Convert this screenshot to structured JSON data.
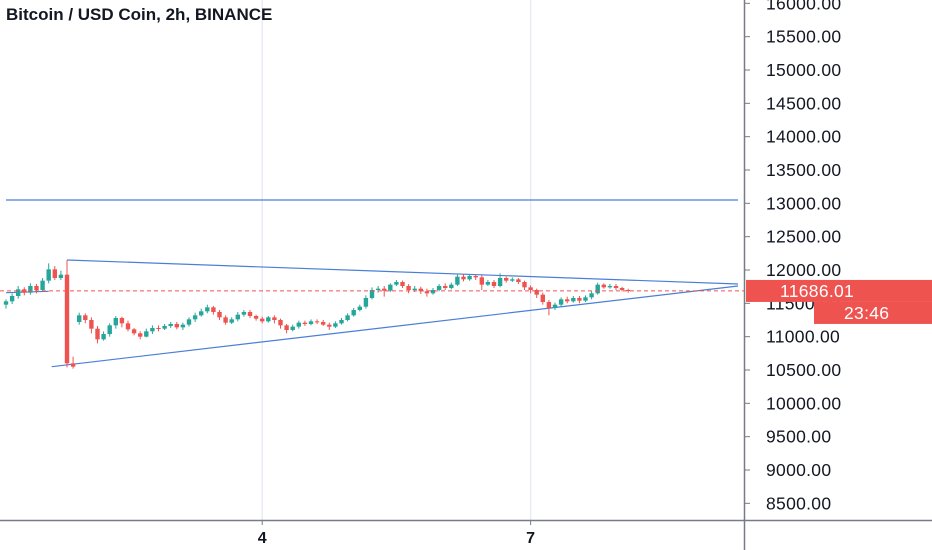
{
  "header": {
    "title": "Bitcoin / USD Coin, 2h, BINANCE"
  },
  "colors": {
    "up": "#26a69a",
    "down": "#ef5350",
    "trendline": "#4a7fd6",
    "grid": "#e8ecf7",
    "axis": "#787b86",
    "price_tag": "#ef5350"
  },
  "chart_data": {
    "type": "candlestick",
    "title": "Bitcoin / USD Coin, 2h, BINANCE",
    "ylim": [
      8400,
      16200
    ],
    "xlim": [
      0,
      120
    ],
    "y_ticks": [
      "16000.00",
      "15500.00",
      "15000.00",
      "14500.00",
      "14000.00",
      "13500.00",
      "13000.00",
      "12500.00",
      "12000.00",
      "11500.00",
      "11000.00",
      "10500.00",
      "10000.00",
      "9500.00",
      "9000.00",
      "8500.00"
    ],
    "x_ticks": [
      {
        "label": "4",
        "x": 42
      },
      {
        "label": "7",
        "x": 86
      }
    ],
    "current_price": "11686.01",
    "countdown": "23:46",
    "candles": [
      [
        11480,
        11530,
        11420,
        11560
      ],
      [
        11530,
        11610,
        11490,
        11650
      ],
      [
        11610,
        11710,
        11570,
        11760
      ],
      [
        11710,
        11660,
        11620,
        11740
      ],
      [
        11660,
        11760,
        11630,
        11800
      ],
      [
        11760,
        11700,
        11650,
        11790
      ],
      [
        11700,
        11840,
        11680,
        11880
      ],
      [
        11840,
        12010,
        11800,
        12100
      ],
      [
        12010,
        11880,
        11850,
        12060
      ],
      [
        11880,
        11930,
        11850,
        11990
      ],
      [
        11930,
        10600,
        10540,
        12150
      ],
      [
        10600,
        10550,
        10520,
        10700
      ],
      [
        11220,
        11320,
        11180,
        11360
      ],
      [
        11320,
        11250,
        11200,
        11350
      ],
      [
        11250,
        11120,
        11050,
        11290
      ],
      [
        11120,
        10960,
        10900,
        11160
      ],
      [
        10960,
        11040,
        10940,
        11080
      ],
      [
        11040,
        11170,
        11000,
        11200
      ],
      [
        11170,
        11280,
        11120,
        11310
      ],
      [
        11280,
        11200,
        11140,
        11300
      ],
      [
        11200,
        11110,
        11080,
        11240
      ],
      [
        11110,
        11050,
        11020,
        11130
      ],
      [
        11050,
        11000,
        10960,
        11080
      ],
      [
        11000,
        11080,
        10990,
        11120
      ],
      [
        11080,
        11130,
        11040,
        11170
      ],
      [
        11130,
        11120,
        11080,
        11170
      ],
      [
        11120,
        11160,
        11100,
        11190
      ],
      [
        11160,
        11190,
        11130,
        11220
      ],
      [
        11190,
        11140,
        11110,
        11220
      ],
      [
        11140,
        11180,
        11100,
        11210
      ],
      [
        11180,
        11260,
        11150,
        11290
      ],
      [
        11260,
        11320,
        11220,
        11360
      ],
      [
        11320,
        11380,
        11300,
        11420
      ],
      [
        11380,
        11440,
        11350,
        11480
      ],
      [
        11440,
        11370,
        11330,
        11460
      ],
      [
        11370,
        11290,
        11250,
        11400
      ],
      [
        11290,
        11210,
        11180,
        11320
      ],
      [
        11210,
        11260,
        11190,
        11290
      ],
      [
        11260,
        11330,
        11230,
        11370
      ],
      [
        11330,
        11370,
        11300,
        11400
      ],
      [
        11370,
        11310,
        11280,
        11400
      ],
      [
        11310,
        11270,
        11240,
        11330
      ],
      [
        11270,
        11230,
        11200,
        11300
      ],
      [
        11230,
        11290,
        11210,
        11310
      ],
      [
        11290,
        11250,
        11200,
        11320
      ],
      [
        11250,
        11170,
        11120,
        11270
      ],
      [
        11170,
        11100,
        11050,
        11190
      ],
      [
        11100,
        11150,
        11080,
        11180
      ],
      [
        11150,
        11210,
        11120,
        11240
      ],
      [
        11210,
        11190,
        11160,
        11240
      ],
      [
        11190,
        11230,
        11170,
        11260
      ],
      [
        11230,
        11220,
        11190,
        11260
      ],
      [
        11220,
        11180,
        11160,
        11250
      ],
      [
        11180,
        11150,
        11100,
        11210
      ],
      [
        11150,
        11200,
        11130,
        11230
      ],
      [
        11200,
        11250,
        11180,
        11280
      ],
      [
        11250,
        11320,
        11230,
        11350
      ],
      [
        11320,
        11400,
        11300,
        11430
      ],
      [
        11400,
        11450,
        11380,
        11480
      ],
      [
        11450,
        11580,
        11420,
        11620
      ],
      [
        11580,
        11700,
        11560,
        11740
      ],
      [
        11700,
        11720,
        11660,
        11760
      ],
      [
        11720,
        11690,
        11600,
        11760
      ],
      [
        11690,
        11780,
        11670,
        11800
      ],
      [
        11780,
        11820,
        11760,
        11850
      ],
      [
        11820,
        11760,
        11730,
        11840
      ],
      [
        11760,
        11700,
        11650,
        11790
      ],
      [
        11700,
        11720,
        11670,
        11760
      ],
      [
        11720,
        11680,
        11640,
        11750
      ],
      [
        11680,
        11650,
        11600,
        11720
      ],
      [
        11650,
        11700,
        11630,
        11730
      ],
      [
        11700,
        11760,
        11680,
        11790
      ],
      [
        11760,
        11730,
        11700,
        11800
      ],
      [
        11730,
        11780,
        11710,
        11810
      ],
      [
        11780,
        11900,
        11760,
        11930
      ],
      [
        11900,
        11860,
        11830,
        11940
      ],
      [
        11860,
        11910,
        11840,
        11940
      ],
      [
        11910,
        11890,
        11850,
        11930
      ],
      [
        11890,
        11780,
        11700,
        11920
      ],
      [
        11780,
        11820,
        11760,
        11850
      ],
      [
        11820,
        11760,
        11730,
        11850
      ],
      [
        11760,
        11880,
        11740,
        11950
      ],
      [
        11880,
        11840,
        11810,
        11900
      ],
      [
        11840,
        11860,
        11820,
        11890
      ],
      [
        11860,
        11820,
        11790,
        11880
      ],
      [
        11820,
        11740,
        11700,
        11840
      ],
      [
        11740,
        11700,
        11650,
        11770
      ],
      [
        11700,
        11630,
        11580,
        11720
      ],
      [
        11630,
        11520,
        11480,
        11660
      ],
      [
        11520,
        11430,
        11320,
        11550
      ],
      [
        11430,
        11480,
        11400,
        11510
      ],
      [
        11480,
        11560,
        11450,
        11590
      ],
      [
        11560,
        11530,
        11500,
        11600
      ],
      [
        11530,
        11580,
        11510,
        11610
      ],
      [
        11580,
        11540,
        11500,
        11610
      ],
      [
        11540,
        11590,
        11520,
        11620
      ],
      [
        11590,
        11650,
        11560,
        11680
      ],
      [
        11650,
        11780,
        11630,
        11810
      ],
      [
        11780,
        11740,
        11720,
        11800
      ],
      [
        11740,
        11760,
        11720,
        11790
      ],
      [
        11760,
        11730,
        11700,
        11790
      ],
      [
        11730,
        11700,
        11680,
        11750
      ],
      [
        11700,
        11686,
        11660,
        11720
      ]
    ],
    "lines": [
      {
        "name": "upper-trend-a",
        "points": [
          [
            0,
            11660
          ],
          [
            7,
            11680
          ]
        ]
      },
      {
        "name": "upper-trend-b",
        "points": [
          [
            10,
            12150
          ],
          [
            120,
            11790
          ]
        ]
      },
      {
        "name": "lower-trend",
        "points": [
          [
            7.5,
            10550
          ],
          [
            120,
            11760
          ]
        ]
      },
      {
        "name": "resistance",
        "points": [
          [
            0,
            13050
          ],
          [
            120,
            13050
          ]
        ]
      }
    ]
  }
}
